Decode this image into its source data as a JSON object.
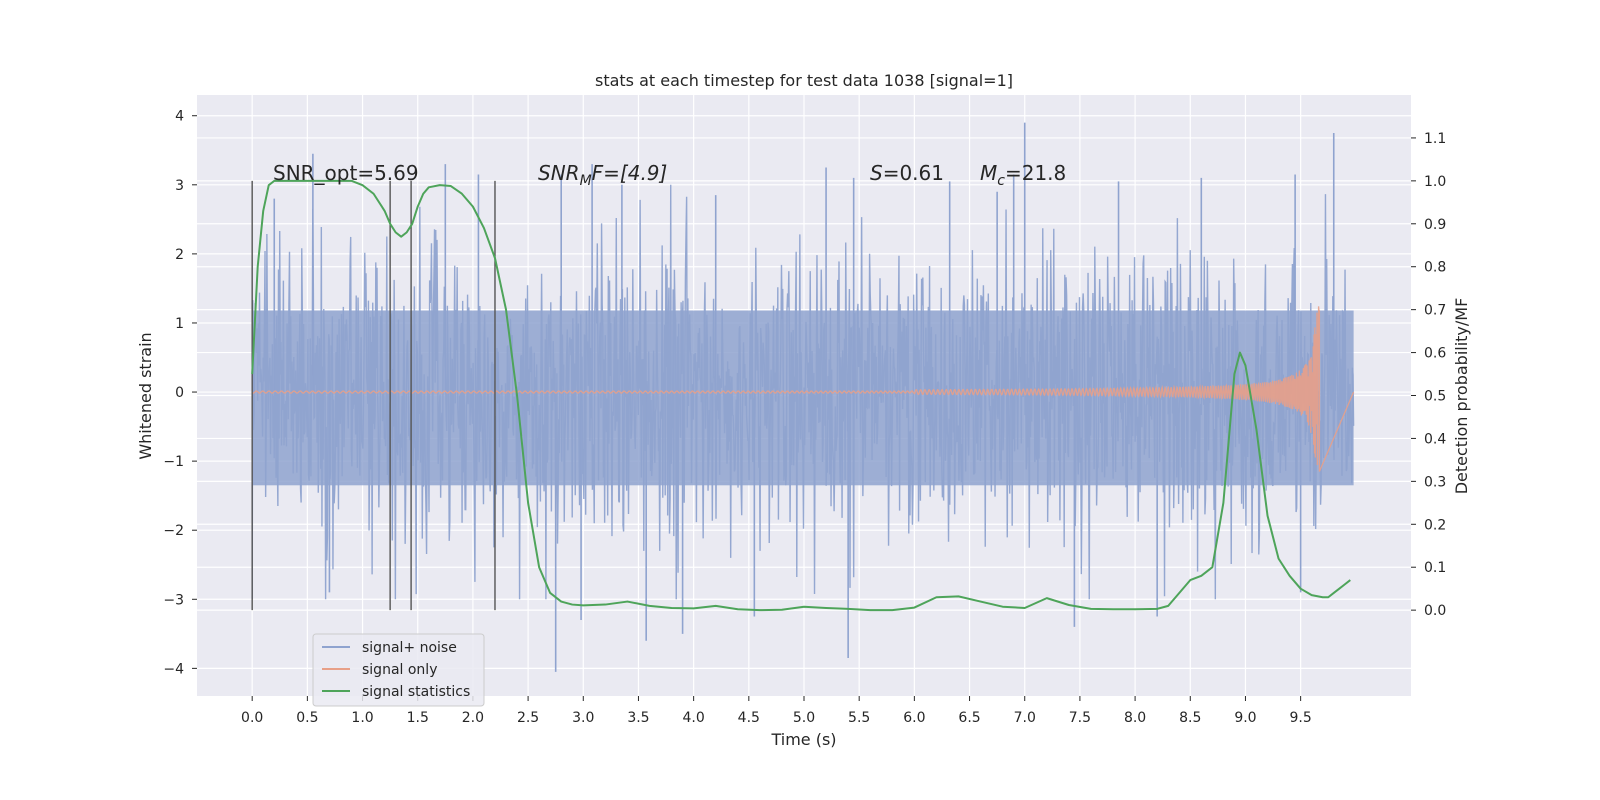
{
  "chart_data": {
    "type": "line",
    "title": "stats at each timestep for test data 1038 [signal=1]",
    "xlabel": "Time (s)",
    "ylabel": "Whitened strain",
    "y2label": "Detection probability/MF",
    "xlim": [
      -0.5,
      10.5
    ],
    "ylim": [
      -4.4,
      4.3
    ],
    "y2lim": [
      -0.2,
      1.2
    ],
    "xticks": [
      "0.0",
      "0.5",
      "1.0",
      "1.5",
      "2.0",
      "2.5",
      "3.0",
      "3.5",
      "4.0",
      "4.5",
      "5.0",
      "5.5",
      "6.0",
      "6.5",
      "7.0",
      "7.5",
      "8.0",
      "8.5",
      "9.0",
      "9.5"
    ],
    "xtick_values": [
      0,
      0.5,
      1,
      1.5,
      2,
      2.5,
      3,
      3.5,
      4,
      4.5,
      5,
      5.5,
      6,
      6.5,
      7,
      7.5,
      8,
      8.5,
      9,
      9.5
    ],
    "yticks": [
      "−4",
      "−3",
      "−2",
      "−1",
      "0",
      "1",
      "2",
      "3",
      "4"
    ],
    "ytick_values": [
      -4,
      -3,
      -2,
      -1,
      0,
      1,
      2,
      3,
      4
    ],
    "y2ticks": [
      "0.0",
      "0.1",
      "0.2",
      "0.3",
      "0.4",
      "0.5",
      "0.6",
      "0.7",
      "0.8",
      "0.9",
      "1.0",
      "1.1"
    ],
    "y2tick_values": [
      0,
      0.1,
      0.2,
      0.3,
      0.4,
      0.5,
      0.6,
      0.7,
      0.8,
      0.9,
      1.0,
      1.1
    ],
    "grid": true,
    "legend_position": "lower-left",
    "annotations": {
      "snr_opt": "SNR_opt=5.69",
      "snr_mf_main": "SNR",
      "snr_mf_sub": "M",
      "snr_mf_rest": "F=[4.9]",
      "s_main": "S",
      "s_rest": "=0.61",
      "mc_main": "M",
      "mc_sub": "c",
      "mc_rest": "=21.8"
    },
    "vlines_x": [
      0.0,
      1.25,
      1.44,
      2.2
    ],
    "series": [
      {
        "name": "signal+ noise",
        "color": "#8fa3cf",
        "x_range": [
          0,
          9.98
        ],
        "envelope_upper": [
          [
            0,
            1.2
          ],
          [
            9.98,
            1.2
          ]
        ],
        "peaks": [
          [
            0.55,
            3.45
          ],
          [
            0.2,
            2.8
          ],
          [
            1.75,
            3.3
          ],
          [
            2.05,
            3.15
          ],
          [
            2.8,
            3.15
          ],
          [
            3.08,
            3.3
          ],
          [
            3.35,
            3.0
          ],
          [
            4.2,
            2.85
          ],
          [
            5.2,
            3.25
          ],
          [
            5.45,
            3.1
          ],
          [
            6.32,
            3.05
          ],
          [
            6.75,
            2.9
          ],
          [
            6.9,
            3.15
          ],
          [
            7.0,
            3.9
          ],
          [
            7.85,
            3.05
          ],
          [
            8.6,
            3.1
          ],
          [
            9.45,
            3.15
          ],
          [
            9.8,
            3.75
          ],
          [
            2.75,
            -4.05
          ],
          [
            3.57,
            -3.6
          ],
          [
            3.9,
            -3.5
          ],
          [
            5.4,
            -3.85
          ],
          [
            2.98,
            -3.3
          ],
          [
            4.55,
            -3.25
          ],
          [
            7.45,
            -3.4
          ],
          [
            8.2,
            -3.25
          ],
          [
            0.7,
            -2.9
          ],
          [
            9.5,
            -2.9
          ]
        ]
      },
      {
        "name": "signal only",
        "color": "#e8a088",
        "chirp_start": 6.0,
        "chirp_end": 9.67,
        "peak_amplitude": 1.3
      },
      {
        "name": "signal statistics",
        "color": "#4ea45a",
        "axis": "right",
        "x": [
          0.0,
          0.05,
          0.1,
          0.15,
          0.2,
          0.3,
          0.4,
          0.5,
          0.6,
          0.7,
          0.8,
          0.9,
          1.0,
          1.1,
          1.2,
          1.25,
          1.3,
          1.35,
          1.4,
          1.45,
          1.5,
          1.55,
          1.6,
          1.7,
          1.8,
          1.9,
          2.0,
          2.1,
          2.2,
          2.3,
          2.4,
          2.5,
          2.6,
          2.7,
          2.8,
          2.9,
          3.0,
          3.2,
          3.4,
          3.6,
          3.8,
          4.0,
          4.2,
          4.4,
          4.6,
          4.8,
          5.0,
          5.2,
          5.4,
          5.6,
          5.8,
          6.0,
          6.2,
          6.4,
          6.6,
          6.8,
          7.0,
          7.2,
          7.4,
          7.6,
          7.8,
          8.0,
          8.2,
          8.3,
          8.4,
          8.5,
          8.6,
          8.7,
          8.8,
          8.9,
          8.95,
          9.0,
          9.1,
          9.2,
          9.3,
          9.4,
          9.5,
          9.6,
          9.7,
          9.75,
          9.8,
          9.85,
          9.9,
          9.95
        ],
        "y": [
          0.55,
          0.8,
          0.93,
          0.99,
          1.0,
          1.0,
          1.0,
          1.0,
          1.0,
          1.0,
          1.0,
          1.0,
          0.99,
          0.97,
          0.93,
          0.9,
          0.88,
          0.87,
          0.88,
          0.9,
          0.94,
          0.97,
          0.985,
          0.99,
          0.988,
          0.97,
          0.94,
          0.89,
          0.82,
          0.7,
          0.5,
          0.25,
          0.1,
          0.04,
          0.02,
          0.013,
          0.011,
          0.013,
          0.02,
          0.01,
          0.005,
          0.004,
          0.01,
          0.002,
          0.0,
          0.001,
          0.008,
          0.005,
          0.003,
          0.0,
          0.0,
          0.006,
          0.03,
          0.032,
          0.02,
          0.008,
          0.005,
          0.028,
          0.012,
          0.003,
          0.002,
          0.002,
          0.003,
          0.01,
          0.04,
          0.07,
          0.08,
          0.1,
          0.25,
          0.55,
          0.6,
          0.57,
          0.42,
          0.22,
          0.12,
          0.08,
          0.05,
          0.035,
          0.03,
          0.03,
          0.04,
          0.05,
          0.06,
          0.07
        ]
      }
    ]
  }
}
